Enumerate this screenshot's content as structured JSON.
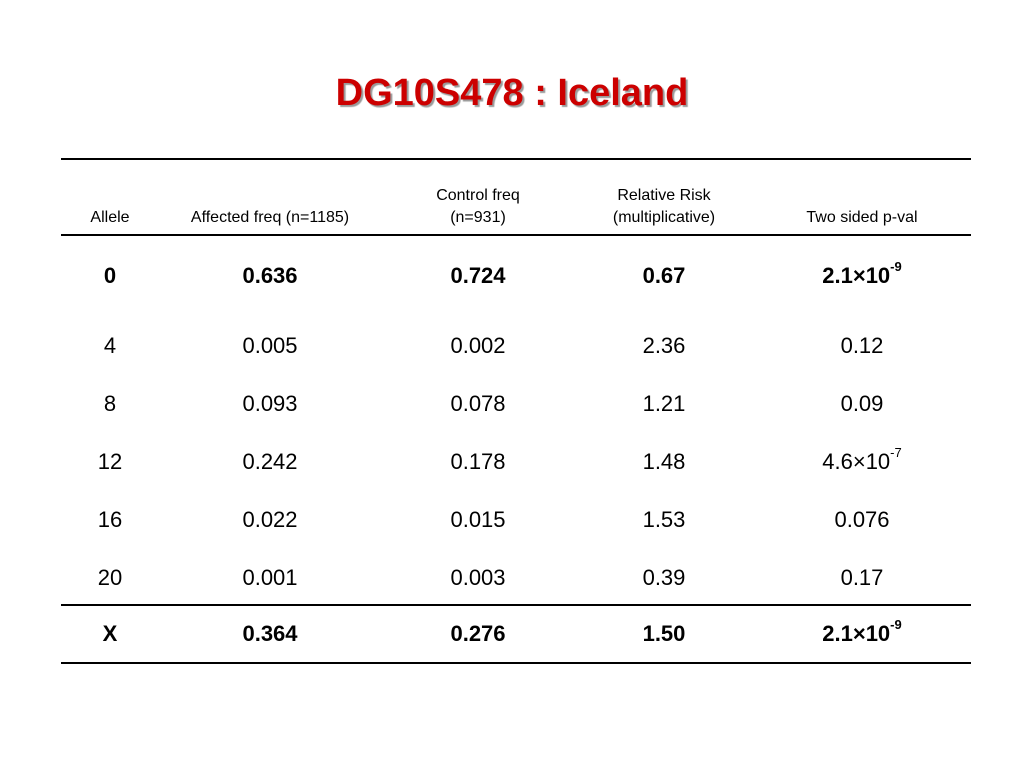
{
  "title": "DG10S478 : Iceland",
  "table": {
    "headers": [
      {
        "line1": "",
        "line2": "Allele"
      },
      {
        "line1": "",
        "line2": "Affected freq (n=1185)"
      },
      {
        "line1": "Control freq",
        "line2": "(n=931)"
      },
      {
        "line1": "Relative Risk",
        "line2": "(multiplicative)"
      },
      {
        "line1": "",
        "line2": "Two sided p-val"
      }
    ],
    "rows": [
      {
        "allele": "0",
        "affected": "0.636",
        "control": "0.724",
        "rr": "0.67",
        "p_base": "2.1×10",
        "p_exp": "-9",
        "p": "",
        "bold": true
      },
      {
        "allele": "4",
        "affected": "0.005",
        "control": "0.002",
        "rr": "2.36",
        "p_base": "",
        "p_exp": "",
        "p": "0.12",
        "bold": false
      },
      {
        "allele": "8",
        "affected": "0.093",
        "control": "0.078",
        "rr": "1.21",
        "p_base": "",
        "p_exp": "",
        "p": "0.09",
        "bold": false
      },
      {
        "allele": "12",
        "affected": "0.242",
        "control": "0.178",
        "rr": "1.48",
        "p_base": "4.6×10",
        "p_exp": "-7",
        "p": "",
        "bold": false
      },
      {
        "allele": "16",
        "affected": "0.022",
        "control": "0.015",
        "rr": "1.53",
        "p_base": "",
        "p_exp": "",
        "p": "0.076",
        "bold": false
      },
      {
        "allele": "20",
        "affected": "0.001",
        "control": "0.003",
        "rr": "0.39",
        "p_base": "",
        "p_exp": "",
        "p": "0.17",
        "bold": false
      }
    ],
    "summary": {
      "allele": "X",
      "affected": "0.364",
      "control": "0.276",
      "rr": "1.50",
      "p_base": "2.1×10",
      "p_exp": "-9"
    }
  }
}
